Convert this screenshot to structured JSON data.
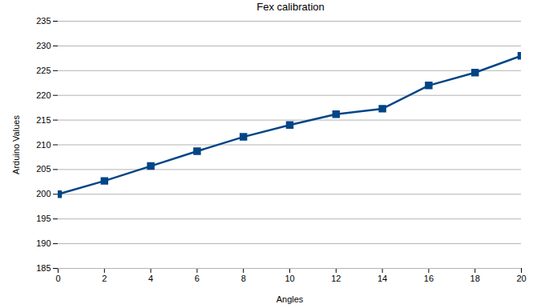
{
  "chart_data": {
    "type": "line",
    "title": "Fex calibration",
    "x_label": "Angles",
    "y_label": "Arduino Values",
    "x": [
      0,
      2,
      4,
      6,
      8,
      10,
      12,
      14,
      16,
      18,
      20
    ],
    "series": [
      {
        "name": "Arduino Values",
        "color": "#004586",
        "marker": "square",
        "line_style": "solid",
        "values": [
          200,
          202.7,
          205.7,
          208.7,
          211.6,
          214,
          216.2,
          217.3,
          222,
          224.6,
          228
        ]
      }
    ],
    "xlim": [
      0,
      20
    ],
    "xticks": [
      0,
      2,
      4,
      6,
      8,
      10,
      12,
      14,
      16,
      18,
      20
    ],
    "ylim": [
      185,
      235
    ],
    "yticks": [
      185,
      190,
      195,
      200,
      205,
      210,
      215,
      220,
      225,
      230,
      235
    ],
    "grid": true
  }
}
